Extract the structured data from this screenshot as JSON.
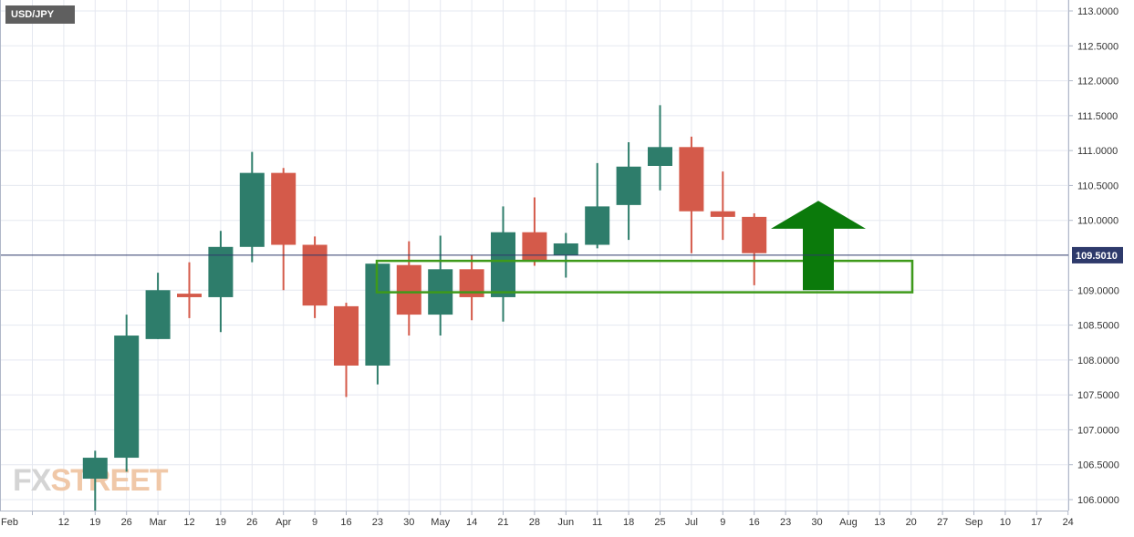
{
  "symbol": "USD/JPY",
  "watermark": {
    "part1": "FX",
    "part2": "STREET"
  },
  "last_price_label": "109.5010",
  "colors": {
    "bullish": "#2e7d6b",
    "bearish": "#d45a4a",
    "grid": "#e5e8f0",
    "axis": "#b0b8c8",
    "price_line": "#2e3a6b",
    "price_tag_bg": "#2e3a6b",
    "annotation": "#0b7a0b",
    "zone_border": "#3e9a1a"
  },
  "chart_data": {
    "type": "candlestick",
    "title": "USD/JPY",
    "y_axis_ticks": [
      "113.0000",
      "112.5000",
      "112.0000",
      "111.5000",
      "111.0000",
      "110.5000",
      "110.0000",
      "109.0000",
      "108.5000",
      "108.0000",
      "107.5000",
      "107.0000",
      "106.5000",
      "106.0000"
    ],
    "y_range": [
      105.99,
      113.15
    ],
    "x_axis_labels": [
      "Feb",
      "12",
      "19",
      "26",
      "Mar",
      "12",
      "19",
      "26",
      "Apr",
      "9",
      "16",
      "23",
      "30",
      "May",
      "14",
      "21",
      "28",
      "Jun",
      "11",
      "18",
      "25",
      "Jul",
      "9",
      "16",
      "23",
      "30",
      "Aug",
      "13",
      "20",
      "27",
      "Sep",
      "10",
      "17",
      "24"
    ],
    "current_price": 109.501,
    "candles": [
      {
        "open": 106.3,
        "high": 106.7,
        "low": 105.6,
        "close": 106.6
      },
      {
        "open": 106.6,
        "high": 108.65,
        "low": 106.4,
        "close": 108.35
      },
      {
        "open": 108.3,
        "high": 109.25,
        "low": 108.3,
        "close": 109.0
      },
      {
        "open": 108.95,
        "high": 109.4,
        "low": 108.6,
        "close": 108.9
      },
      {
        "open": 108.9,
        "high": 109.85,
        "low": 108.4,
        "close": 109.62
      },
      {
        "open": 109.62,
        "high": 110.98,
        "low": 109.4,
        "close": 110.68
      },
      {
        "open": 110.68,
        "high": 110.75,
        "low": 109.0,
        "close": 109.65
      },
      {
        "open": 109.65,
        "high": 109.77,
        "low": 108.6,
        "close": 108.78
      },
      {
        "open": 108.77,
        "high": 108.82,
        "low": 107.47,
        "close": 107.92
      },
      {
        "open": 107.92,
        "high": 109.38,
        "low": 107.65,
        "close": 109.38
      },
      {
        "open": 109.36,
        "high": 109.7,
        "low": 108.35,
        "close": 108.65
      },
      {
        "open": 108.65,
        "high": 109.78,
        "low": 108.35,
        "close": 109.3
      },
      {
        "open": 109.3,
        "high": 109.5,
        "low": 108.57,
        "close": 108.9
      },
      {
        "open": 108.9,
        "high": 110.2,
        "low": 108.55,
        "close": 109.83
      },
      {
        "open": 109.83,
        "high": 110.33,
        "low": 109.35,
        "close": 109.43
      },
      {
        "open": 109.5,
        "high": 109.82,
        "low": 109.18,
        "close": 109.67
      },
      {
        "open": 109.65,
        "high": 110.82,
        "low": 109.6,
        "close": 110.2
      },
      {
        "open": 110.22,
        "high": 111.12,
        "low": 109.72,
        "close": 110.77
      },
      {
        "open": 110.78,
        "high": 111.65,
        "low": 110.43,
        "close": 111.05
      },
      {
        "open": 111.05,
        "high": 111.2,
        "low": 109.53,
        "close": 110.13
      },
      {
        "open": 110.13,
        "high": 110.7,
        "low": 109.72,
        "close": 110.05
      },
      {
        "open": 110.05,
        "high": 110.1,
        "low": 109.07,
        "close": 109.53
      }
    ],
    "support_zone": {
      "low": 108.97,
      "high": 109.42
    },
    "annotation": "arrow-up"
  }
}
